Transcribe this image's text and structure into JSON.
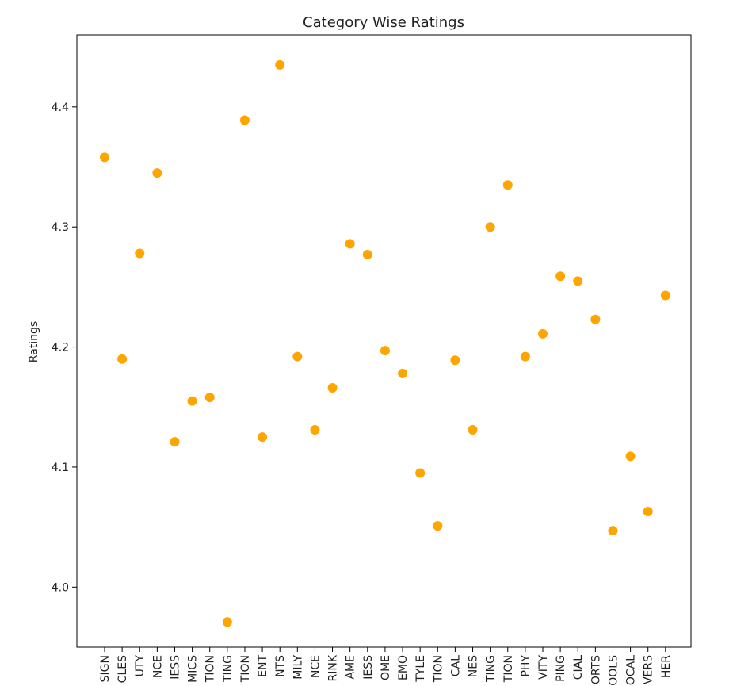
{
  "chart_data": {
    "type": "scatter",
    "title": "Category Wise Ratings",
    "xlabel": "",
    "ylabel": "Ratings",
    "ylim": [
      3.95,
      4.46
    ],
    "yticks": [
      "4.0",
      "4.1",
      "4.2",
      "4.3",
      "4.4"
    ],
    "grid": false,
    "marker_color": "#FFA500",
    "categories": [
      "SIGN",
      "CLES",
      "UTY",
      "NCE",
      "IESS",
      "MICS",
      "TION",
      "TING",
      "TION",
      "ENT",
      "NTS",
      "MILY",
      "NCE",
      "RINK",
      "AME",
      "IESS",
      "OME",
      "EMO",
      "TYLE",
      "TION",
      "CAL",
      "NES",
      "TING",
      "TION",
      "PHY",
      "VITY",
      "PING",
      "CIAL",
      "ORTS",
      "OOLS",
      "OCAL",
      "VERS",
      "HER"
    ],
    "values": [
      4.358,
      4.19,
      4.278,
      4.345,
      4.121,
      4.155,
      4.158,
      3.971,
      4.389,
      4.125,
      4.435,
      4.192,
      4.131,
      4.166,
      4.286,
      4.277,
      4.197,
      4.178,
      4.095,
      4.051,
      4.189,
      4.131,
      4.3,
      4.335,
      4.192,
      4.211,
      4.259,
      4.255,
      4.223,
      4.047,
      4.109,
      4.063,
      4.243
    ]
  }
}
